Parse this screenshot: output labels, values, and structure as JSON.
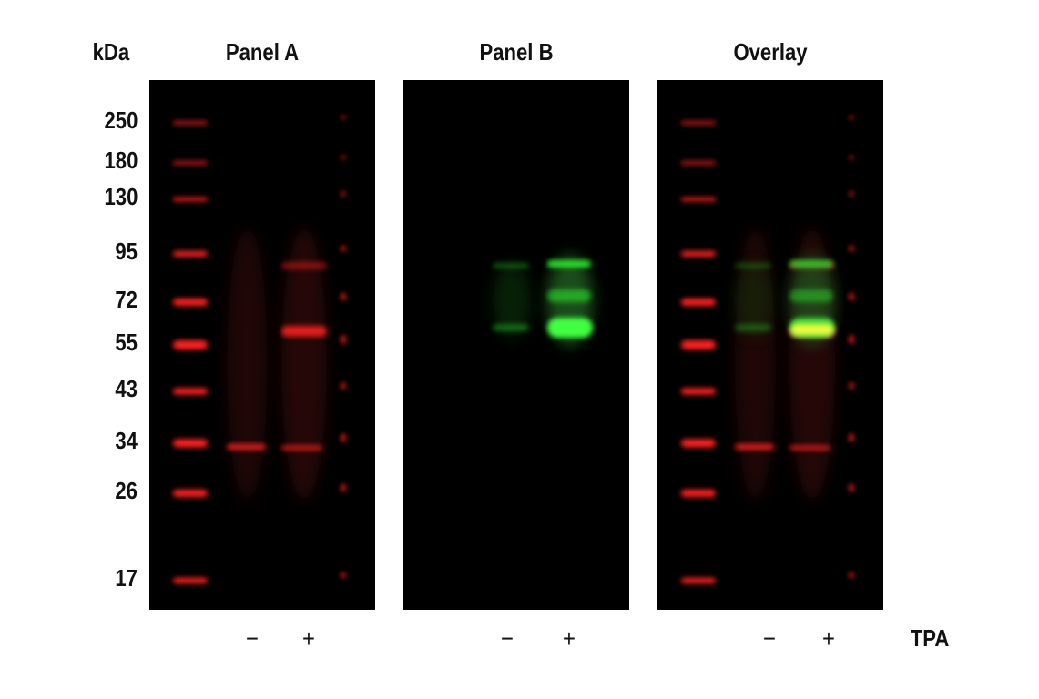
{
  "header": {
    "unit": "kDa",
    "panels": [
      "Panel A",
      "Panel B",
      "Overlay"
    ]
  },
  "markers": [
    "250",
    "180",
    "130",
    "95",
    "72",
    "55",
    "43",
    "34",
    "26",
    "17"
  ],
  "lanes": [
    [
      "−",
      "+"
    ],
    [
      "−",
      "+"
    ],
    [
      "−",
      "+"
    ]
  ],
  "treatment": "TPA"
}
